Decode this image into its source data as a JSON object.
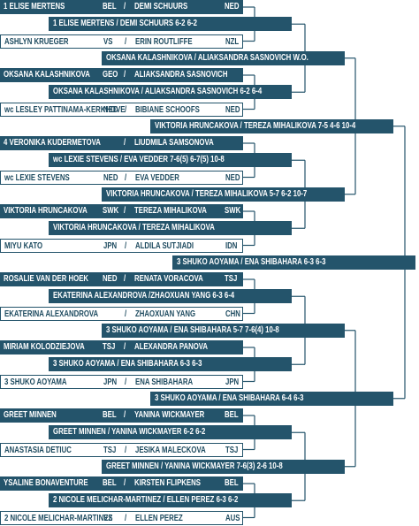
{
  "draw": {
    "separator": "/",
    "round1": [
      {
        "left": "1 ELISE MERTENS",
        "left_country": "BEL",
        "right": "DEMI SCHUURS",
        "right_country": "NED"
      },
      {
        "left": "ASHLYN KRUEGER",
        "left_country": "VS",
        "right": "ERIN ROUTLIFFE",
        "right_country": "NZL"
      },
      {
        "left": "OKSANA KALASHNIKOVA",
        "left_country": "GEO",
        "right": "ALIAKSANDRA SASNOVICH"
      },
      {
        "left": "wc LESLEY PATTINAMA-KERKHOVE",
        "left_country": "NED",
        "right": "BIBIANE SCHOOFS",
        "right_country": "NED"
      },
      {
        "left": "4 VERONIKA KUDERMETOVA",
        "right": "LIUDMILA SAMSONOVA"
      },
      {
        "left": "wc LEXIE STEVENS",
        "left_country": "NED",
        "right": "EVA VEDDER",
        "right_country": "NED"
      },
      {
        "left": "VIKTORIA HRUNCAKOVA",
        "left_country": "SWK",
        "right": "TEREZA MIHALIKOVA",
        "right_country": "SWK"
      },
      {
        "left": "MIYU KATO",
        "left_country": "JPN",
        "right": "ALDILA SUTJIADI",
        "right_country": "IDN"
      },
      {
        "left": "ROSALIE VAN DER HOEK",
        "left_country": "NED",
        "right": "RENATA VORACOVA",
        "right_country": "TSJ"
      },
      {
        "left": "EKATERINA ALEXANDROVA",
        "right": "ZHAOXUAN YANG",
        "right_country": "CHN"
      },
      {
        "left": "MIRIAM KOLODZIEJOVA",
        "left_country": "TSJ",
        "right": "ALEXANDRA PANOVA"
      },
      {
        "left": "3 SHUKO AOYAMA",
        "left_country": "JPN",
        "right": "ENA SHIBAHARA",
        "right_country": "JPN"
      },
      {
        "left": "GREET MINNEN",
        "left_country": "BEL",
        "right": "YANINA WICKMAYER",
        "right_country": "BEL"
      },
      {
        "left": "ANASTASIA DETIUC",
        "left_country": "TSJ",
        "right": "JESIKA MALECKOVA",
        "right_country": "TSJ"
      },
      {
        "left": "YSALINE BONAVENTURE",
        "left_country": "BEL",
        "right": "KIRSTEN FLIPKENS",
        "right_country": "BEL"
      },
      {
        "left": "2 NICOLE MELICHAR-MARTINEZ",
        "left_country": "VS",
        "right": "ELLEN PEREZ",
        "right_country": "AUS"
      }
    ],
    "round2": [
      "1 ELISE MERTENS / DEMI SCHUURS 6-2 6-2",
      "OKSANA KALASHNIKOVA / ALIAKSANDRA SASNOVICH 6-2 6-4",
      "wc LEXIE STEVENS / EVA VEDDER 7-6(5) 6-7(5) 10-8",
      "VIKTORIA HRUNCAKOVA / TEREZA MIHALIKOVA",
      "EKATERINA ALEXANDROVA /ZHAOXUAN YANG 6-3 6-4",
      "3 SHUKO AOYAMA / ENA SHIBAHARA 6-3 6-3",
      "GREET MINNEN / YANINA WICKMAYER 6-2 6-2",
      "2 NICOLE MELICHAR-MARTINEZ / ELLEN PEREZ 6-3 6-2"
    ],
    "quarterfinals": [
      "OKSANA KALASHNIKOVA / ALIAKSANDRA SASNOVICH W.O.",
      "VIKTORIA HRUNCAKOVA / TEREZA MIHALIKOVA 5-7 6-2 10-7",
      "3 SHUKO AOYAMA / ENA SHIBAHARA 5-7 7-6(4) 10-8",
      "GREET MINNEN / YANINA WICKMAYER 7-6(3) 2-6 10-8"
    ],
    "semifinals": [
      "VIKTORIA HRUNCAKOVA / TEREZA MIHALIKOVA 7-5 4-6 10-4",
      "3 SHUKO AOYAMA / ENA SHIBAHARA 6-4 6-3"
    ],
    "final": [
      "3 SHUKO AOYAMA / ENA SHIBAHARA 6-3 6-3"
    ]
  }
}
